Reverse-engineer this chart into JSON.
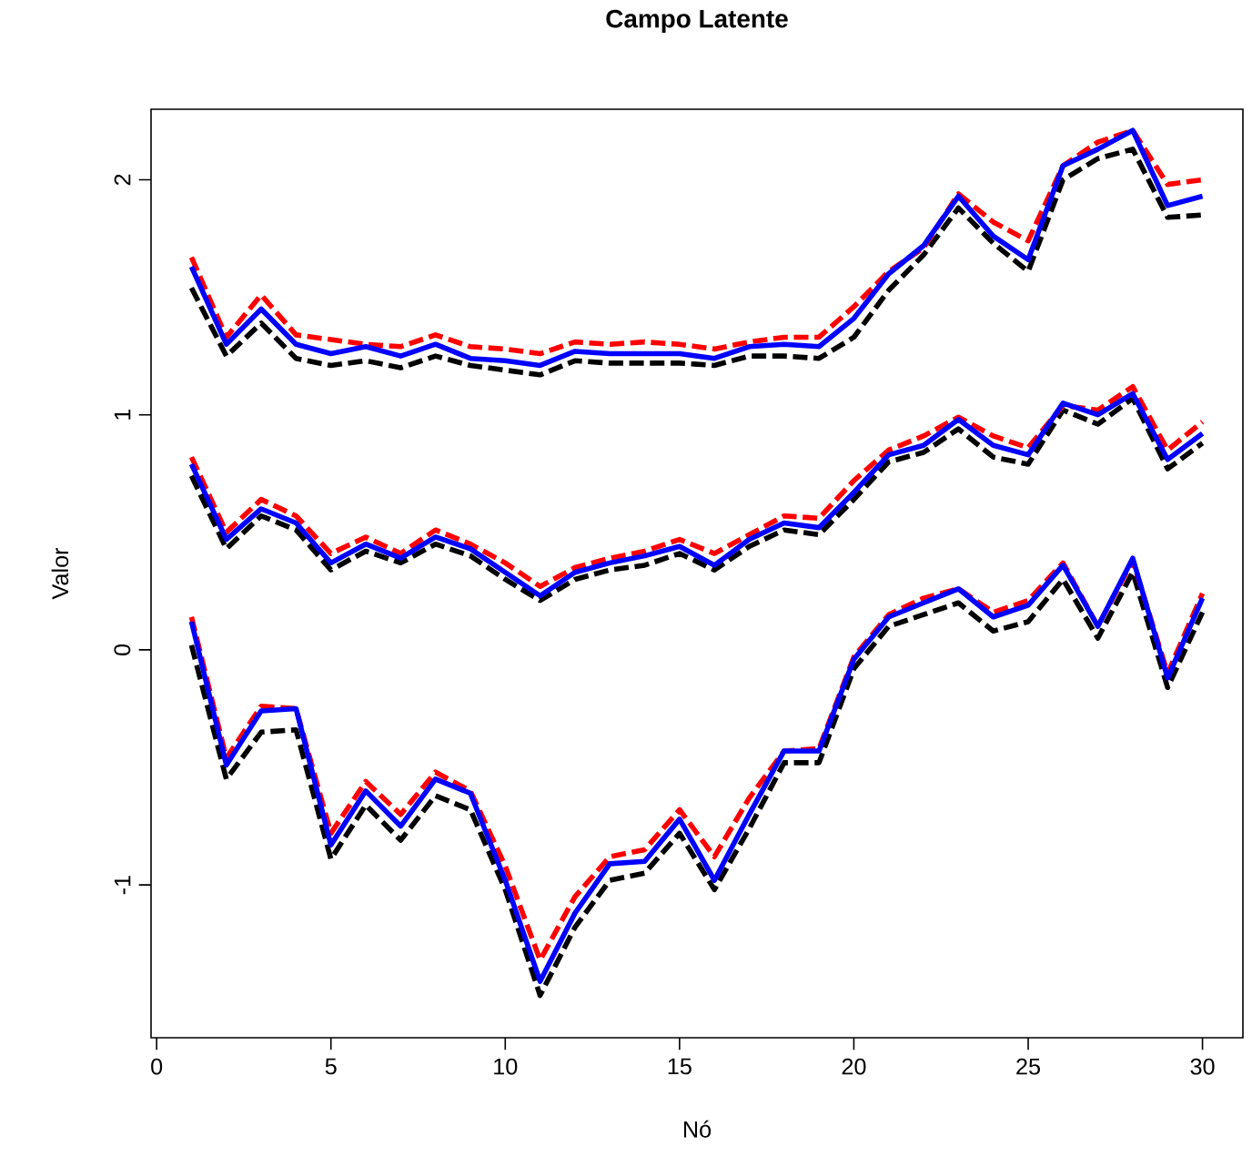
{
  "chart_data": {
    "type": "line",
    "title": "Campo Latente",
    "xlabel": "Nó",
    "ylabel": "Valor",
    "x": [
      1,
      2,
      3,
      4,
      5,
      6,
      7,
      8,
      9,
      10,
      11,
      12,
      13,
      14,
      15,
      16,
      17,
      18,
      19,
      20,
      21,
      22,
      23,
      24,
      25,
      26,
      27,
      28,
      29,
      30
    ],
    "xlim": [
      -0.16,
      31.16
    ],
    "ylim": [
      -1.65,
      2.3
    ],
    "xticks": [
      0,
      5,
      10,
      15,
      20,
      25,
      30
    ],
    "yticks": [
      -1,
      0,
      1,
      2
    ],
    "marker": "none",
    "series": [
      {
        "color": "#000000",
        "line_style": "dashed",
        "values": [
          1.54,
          1.25,
          1.39,
          1.24,
          1.21,
          1.23,
          1.2,
          1.25,
          1.21,
          1.19,
          1.17,
          1.23,
          1.22,
          1.22,
          1.22,
          1.21,
          1.25,
          1.25,
          1.24,
          1.33,
          1.53,
          1.68,
          1.88,
          1.73,
          1.61,
          2.0,
          2.09,
          2.13,
          1.84,
          1.85
        ]
      },
      {
        "color": "#ff0000",
        "line_style": "dashed",
        "values": [
          1.67,
          1.33,
          1.51,
          1.34,
          1.32,
          1.3,
          1.29,
          1.34,
          1.29,
          1.28,
          1.26,
          1.31,
          1.3,
          1.31,
          1.3,
          1.28,
          1.31,
          1.33,
          1.33,
          1.46,
          1.61,
          1.71,
          1.94,
          1.82,
          1.74,
          2.06,
          2.16,
          2.21,
          1.98,
          2.0
        ]
      },
      {
        "color": "#0000ff",
        "line_style": "solid",
        "values": [
          1.63,
          1.3,
          1.45,
          1.3,
          1.26,
          1.29,
          1.25,
          1.3,
          1.24,
          1.23,
          1.21,
          1.27,
          1.26,
          1.26,
          1.26,
          1.24,
          1.29,
          1.3,
          1.29,
          1.41,
          1.6,
          1.72,
          1.93,
          1.76,
          1.66,
          2.06,
          2.13,
          2.21,
          1.89,
          1.93
        ]
      },
      {
        "color": "#000000",
        "line_style": "dashed",
        "values": [
          0.74,
          0.43,
          0.57,
          0.51,
          0.34,
          0.42,
          0.37,
          0.45,
          0.4,
          0.3,
          0.21,
          0.3,
          0.34,
          0.36,
          0.41,
          0.34,
          0.44,
          0.51,
          0.49,
          0.64,
          0.8,
          0.84,
          0.94,
          0.82,
          0.79,
          1.02,
          0.96,
          1.07,
          0.77,
          0.88
        ]
      },
      {
        "color": "#ff0000",
        "line_style": "dashed",
        "values": [
          0.82,
          0.5,
          0.64,
          0.57,
          0.41,
          0.48,
          0.41,
          0.51,
          0.45,
          0.37,
          0.27,
          0.35,
          0.39,
          0.42,
          0.47,
          0.41,
          0.49,
          0.57,
          0.56,
          0.72,
          0.85,
          0.91,
          0.99,
          0.91,
          0.86,
          1.04,
          1.02,
          1.12,
          0.85,
          0.97
        ]
      },
      {
        "color": "#0000ff",
        "line_style": "solid",
        "values": [
          0.79,
          0.47,
          0.6,
          0.54,
          0.37,
          0.45,
          0.39,
          0.48,
          0.43,
          0.33,
          0.23,
          0.33,
          0.37,
          0.4,
          0.44,
          0.36,
          0.47,
          0.54,
          0.52,
          0.67,
          0.83,
          0.87,
          0.98,
          0.87,
          0.83,
          1.05,
          1.0,
          1.09,
          0.81,
          0.92
        ]
      },
      {
        "color": "#000000",
        "line_style": "dashed",
        "values": [
          0.02,
          -0.55,
          -0.35,
          -0.34,
          -0.89,
          -0.66,
          -0.81,
          -0.62,
          -0.68,
          -1.02,
          -1.47,
          -1.18,
          -0.98,
          -0.95,
          -0.78,
          -1.02,
          -0.76,
          -0.48,
          -0.48,
          -0.08,
          0.1,
          0.15,
          0.2,
          0.08,
          0.12,
          0.3,
          0.05,
          0.33,
          -0.16,
          0.16
        ]
      },
      {
        "color": "#ff0000",
        "line_style": "dashed",
        "values": [
          0.14,
          -0.46,
          -0.24,
          -0.25,
          -0.78,
          -0.56,
          -0.7,
          -0.52,
          -0.6,
          -0.92,
          -1.32,
          -1.05,
          -0.88,
          -0.85,
          -0.68,
          -0.88,
          -0.63,
          -0.43,
          -0.42,
          -0.03,
          0.15,
          0.22,
          0.26,
          0.16,
          0.21,
          0.37,
          0.1,
          0.38,
          -0.1,
          0.24
        ]
      },
      {
        "color": "#0000ff",
        "line_style": "solid",
        "values": [
          0.12,
          -0.49,
          -0.26,
          -0.25,
          -0.83,
          -0.6,
          -0.75,
          -0.55,
          -0.61,
          -0.98,
          -1.41,
          -1.12,
          -0.91,
          -0.9,
          -0.72,
          -0.98,
          -0.7,
          -0.43,
          -0.43,
          -0.04,
          0.14,
          0.2,
          0.26,
          0.14,
          0.19,
          0.36,
          0.1,
          0.39,
          -0.12,
          0.22
        ]
      }
    ]
  }
}
